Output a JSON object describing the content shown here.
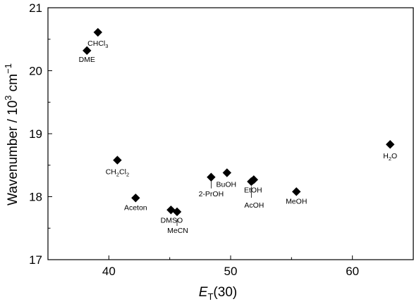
{
  "chart_data": {
    "type": "scatter",
    "title": "",
    "xlabel": {
      "main": "E",
      "sub": "T",
      "rest": "(30)"
    },
    "ylabel": {
      "main": "Wavenumber / 10",
      "sup": "3",
      "rest": " cm",
      "sup2": "−1"
    },
    "xlim": [
      35,
      65
    ],
    "ylim": [
      17,
      21
    ],
    "xticks": [
      40,
      50,
      60
    ],
    "yticks": [
      17,
      18,
      19,
      20,
      21
    ],
    "x_minor_step": 5,
    "y_minor_step": 0.5,
    "grid": false,
    "marker": "diamond",
    "marker_color": "#000000",
    "points": [
      {
        "label": "CHCl",
        "sub": "3",
        "x": 39.1,
        "y": 20.61
      },
      {
        "label": "DME",
        "sub": "",
        "x": 38.2,
        "y": 20.32
      },
      {
        "label": "CH",
        "sub": "2",
        "mid": "Cl",
        "sub2": "2",
        "x": 40.7,
        "y": 18.58
      },
      {
        "label": "Aceton",
        "sub": "",
        "x": 42.2,
        "y": 17.98
      },
      {
        "label": "DMSO",
        "sub": "",
        "x": 45.1,
        "y": 17.79
      },
      {
        "label": "MeCN",
        "sub": "",
        "x": 45.6,
        "y": 17.76
      },
      {
        "label": "2-PrOH",
        "sub": "",
        "x": 48.4,
        "y": 18.31
      },
      {
        "label": "BuOH",
        "sub": "",
        "x": 49.7,
        "y": 18.38
      },
      {
        "label": "EtOH",
        "sub": "",
        "x": 51.9,
        "y": 18.27
      },
      {
        "label": "AcOH",
        "sub": "",
        "x": 51.7,
        "y": 18.24
      },
      {
        "label": "MeOH",
        "sub": "",
        "x": 55.4,
        "y": 18.08
      },
      {
        "label": "H",
        "sub": "2",
        "mid": "O",
        "sub2": "",
        "x": 63.1,
        "y": 18.83
      }
    ]
  }
}
